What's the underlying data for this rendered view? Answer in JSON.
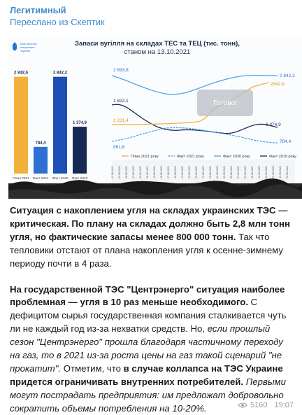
{
  "post": {
    "channel": "Легитимный",
    "forwarded": "Переслано из Скептик",
    "views": "5160",
    "time": "19:07"
  },
  "image": {
    "ministry": [
      "Міністерство",
      "енергетики",
      "України"
    ],
    "title_line1": "Запаси вугілля на складах ТЕС та ТЕЦ (тис. тонн),",
    "title_line2": "станом на 13.10.2021",
    "overlay": "Готово!",
    "bars": [
      {
        "label": "2 842,6",
        "value": 2842.6,
        "caption": "План 2021",
        "color": "#f3b03a"
      },
      {
        "label": "784,4",
        "value": 784.4,
        "caption": "Факт 2021",
        "color": "#2e6fd3"
      },
      {
        "label": "2 842,2",
        "value": 2842.2,
        "caption": "Факт 2020",
        "color": "#1d4fb4"
      },
      {
        "label": "1 374,9",
        "value": 1374.9,
        "caption": "Факт 2019",
        "color": "#162a54"
      }
    ],
    "line_labels": {
      "left_2893": "2 893,8",
      "left_1822": "1 822,1",
      "left_1231": "1 231,4",
      "left_891": "891,6",
      "right_2842_2": "2 842,2",
      "right_2842_6": "2842,6",
      "right_1374": "1 374,9",
      "right_784": "784,4"
    },
    "legend": [
      "План 2021 року",
      "Факт 2021 року",
      "Факт 2020 року",
      "Факт 2019 року"
    ],
    "colors": {
      "plan": "#f3b03a",
      "fact2021": "#4aa3e8",
      "fact2020": "#2e6fd3",
      "fact2019": "#162a54"
    }
  },
  "body": {
    "p1_bold": "Ситуация с накоплением угля на складах украинских ТЭС — критическая. По плану на складах должно быть 2,8 млн тонн угля, но фактические запасы менее 800 000 тонн.",
    "p1_rest": " Так что тепловики отстают от плана накопления угля к осенне-зимнему периоду почти в 4 раза.",
    "p2_bold1": "На государственной ТЭС \"Центрэнерго\" ситуация наиболее проблемная — угля в 10 раз меньше необходимого.",
    "p2_text1": " С дефицитом сырья государственная компания сталкивается чуть ли не каждый год из-за нехватки средств. Но, ",
    "p2_ital1": "если прошлый сезон \"Центрэнерго\" прошла благодаря частичному переходу на газ, то в 2021 из-за роста цены на газ такой сценарий \"не прокатит\".",
    "p2_text2": " Отметим, что ",
    "p2_bold2": "в случае коллапса на ТЭС Украине придется ограничивать внутренних потребителей.",
    "p2_ital2": " Первыми могут пострадать предприятия: им предложат добровольно сократить объемы потребления на 10-20%."
  }
}
